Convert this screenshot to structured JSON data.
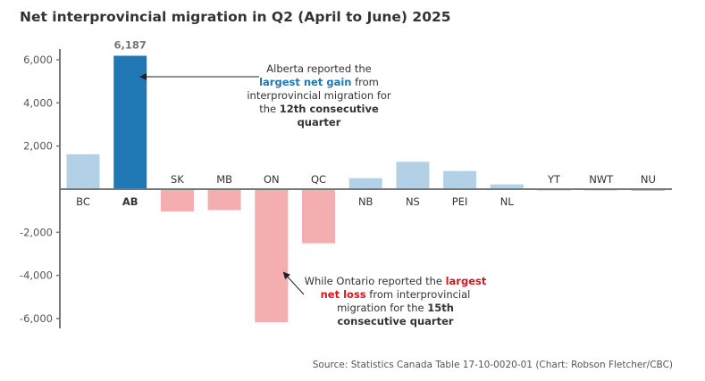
{
  "chart_data": {
    "type": "bar",
    "title": "Net interprovincial migration in Q2 (April to June) 2025",
    "xlabel": "",
    "ylabel": "",
    "ylim": [
      -6000,
      6000
    ],
    "yticks": [
      6000,
      4000,
      2000,
      -2000,
      -4000,
      -6000
    ],
    "ytick_labels": [
      "6,000",
      "4,000",
      "2,000",
      "-2,000",
      "-4,000",
      "-6,000"
    ],
    "categories": [
      "BC",
      "AB",
      "SK",
      "MB",
      "ON",
      "QC",
      "NB",
      "NS",
      "PEI",
      "NL",
      "YT",
      "NWT",
      "NU"
    ],
    "values": [
      1620,
      6187,
      -1030,
      -970,
      -6170,
      -2510,
      510,
      1270,
      840,
      220,
      -40,
      -40,
      -80
    ],
    "highlight": "AB",
    "data_labels": [
      {
        "category": "AB",
        "text": "6,187"
      }
    ],
    "colors": {
      "positive": "#b3d1e6",
      "highlight": "#1f77b4",
      "negative": "#f4aeb0",
      "axis": "#777777"
    },
    "grid": false
  },
  "annotations": {
    "alberta": {
      "pre": "Alberta reported the",
      "hl": "largest net gain",
      "mid": " from interprovincial migration for the ",
      "bold": "12th consecutive quarter"
    },
    "ontario": {
      "pre": "While Ontario reported the ",
      "hl": "largest net loss",
      "mid": " from interprovincial migration for the ",
      "bold": "15th consecutive quarter"
    }
  },
  "source": "Source: Statistics Canada Table 17-10-0020-01 (Chart: Robson Fletcher/CBC)"
}
